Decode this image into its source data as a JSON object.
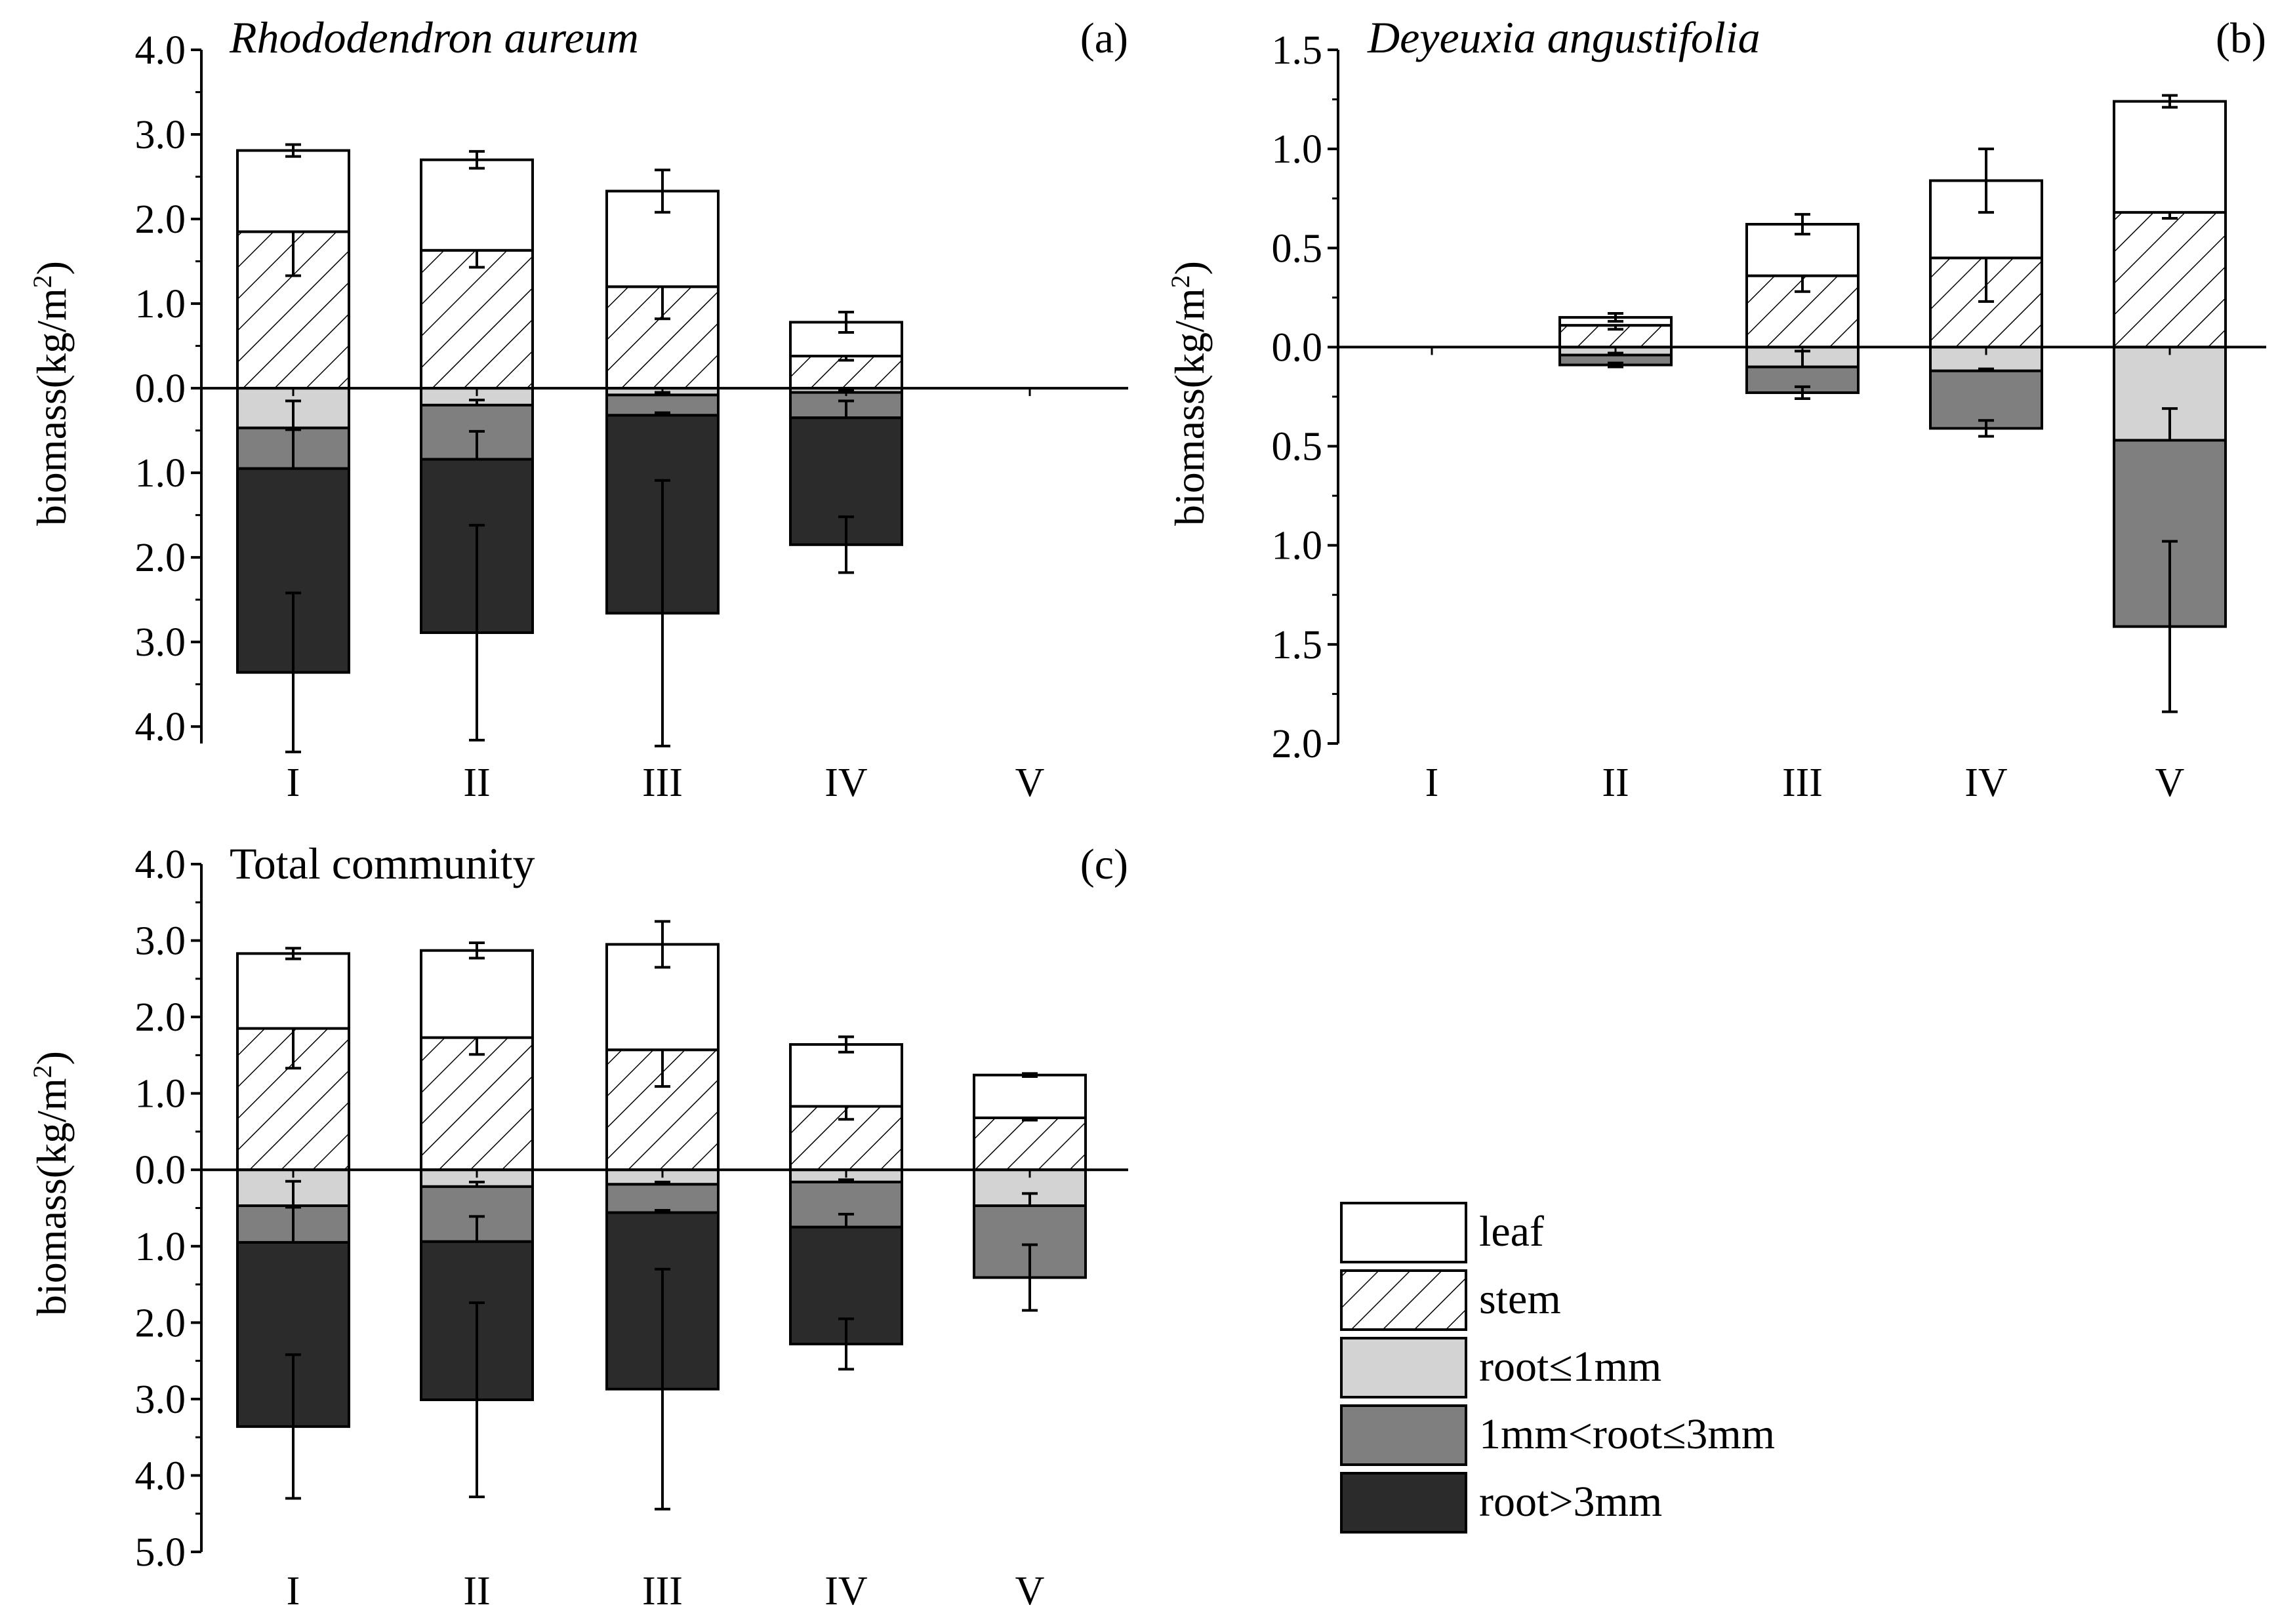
{
  "figure": {
    "legend": [
      {
        "key": "leaf",
        "label": "leaf"
      },
      {
        "key": "stem",
        "label": "stem"
      },
      {
        "key": "root1",
        "label": "root≤1mm"
      },
      {
        "key": "root3",
        "label": "1mm<root≤3mm"
      },
      {
        "key": "rootL",
        "label": "root>3mm"
      }
    ],
    "colors": {
      "leaf": "#ffffff",
      "stem": "#ffffff",
      "root1": "#d3d3d3",
      "root3": "#7f7f7f",
      "rootL": "#2b2b2b",
      "line": "#000000"
    }
  },
  "chart_data": [
    {
      "id": "a",
      "type": "bar",
      "stacked": "diverging",
      "title": "Rhododendron aureum",
      "title_style": "italic",
      "panel_label": "(a)",
      "ylabel": "biomass(kg/m²)",
      "ylim": [
        -4.2,
        4.0
      ],
      "categories": [
        "I",
        "II",
        "III",
        "IV",
        "V"
      ],
      "yticks": [
        {
          "v": 4,
          "label": "4.0"
        },
        {
          "v": 3,
          "label": "3.0"
        },
        {
          "v": 2,
          "label": "2.0"
        },
        {
          "v": 1,
          "label": "1.0"
        },
        {
          "v": 0,
          "label": "0.0"
        },
        {
          "v": -1,
          "label": "1.0"
        },
        {
          "v": -2,
          "label": "2.0"
        },
        {
          "v": -3,
          "label": "3.0"
        },
        {
          "v": -4,
          "label": "4.0"
        }
      ],
      "above": [
        {
          "name": "stem",
          "values": [
            1.85,
            1.63,
            1.2,
            0.38,
            0
          ],
          "err": [
            0.52,
            0.2,
            0.38,
            0.05,
            0
          ]
        },
        {
          "name": "leaf",
          "values": [
            0.96,
            1.07,
            1.13,
            0.4,
            0
          ],
          "err": [
            0.07,
            0.1,
            0.25,
            0.12,
            0
          ]
        }
      ],
      "below": [
        {
          "name": "root≤1mm",
          "values": [
            0.47,
            0.2,
            0.08,
            0.05,
            0
          ],
          "err": [
            0.32,
            0.06,
            0.03,
            0.02,
            0
          ]
        },
        {
          "name": "1mm<root≤3mm",
          "values": [
            0.48,
            0.64,
            0.24,
            0.3,
            0
          ],
          "err": [
            0.46,
            0.33,
            0.03,
            0.2,
            0
          ]
        },
        {
          "name": "root>3mm",
          "values": [
            2.41,
            2.05,
            2.34,
            1.5,
            0
          ],
          "err": [
            0.94,
            1.27,
            1.57,
            0.33,
            0
          ]
        }
      ]
    },
    {
      "id": "b",
      "type": "bar",
      "stacked": "diverging",
      "title": "Deyeuxia angustifolia",
      "title_style": "italic",
      "panel_label": "(b)",
      "ylabel": "biomass(kg/m²)",
      "ylim": [
        -2.0,
        1.5
      ],
      "categories": [
        "I",
        "II",
        "III",
        "IV",
        "V"
      ],
      "yticks": [
        {
          "v": 1.5,
          "label": "1.5"
        },
        {
          "v": 1,
          "label": "1.0"
        },
        {
          "v": 0.5,
          "label": "0.5"
        },
        {
          "v": 0,
          "label": "0.0"
        },
        {
          "v": -0.5,
          "label": "0.5"
        },
        {
          "v": -1,
          "label": "1.0"
        },
        {
          "v": -1.5,
          "label": "1.5"
        },
        {
          "v": -2,
          "label": "2.0"
        }
      ],
      "above": [
        {
          "name": "stem",
          "values": [
            0,
            0.11,
            0.36,
            0.45,
            0.68
          ],
          "err": [
            0,
            0.02,
            0.08,
            0.22,
            0.03
          ]
        },
        {
          "name": "leaf",
          "values": [
            0,
            0.04,
            0.26,
            0.39,
            0.56
          ],
          "err": [
            0,
            0.02,
            0.05,
            0.16,
            0.03
          ]
        }
      ],
      "below": [
        {
          "name": "root≤1mm",
          "values": [
            0,
            0.04,
            0.1,
            0.12,
            0.47
          ],
          "err": [
            0,
            0.01,
            0.08,
            0.01,
            0.16
          ]
        },
        {
          "name": "1mm<root≤3mm",
          "values": [
            0,
            0.05,
            0.13,
            0.29,
            0.94
          ],
          "err": [
            0,
            0.01,
            0.03,
            0.04,
            0.43
          ]
        }
      ]
    },
    {
      "id": "c",
      "type": "bar",
      "stacked": "diverging",
      "title": "Total community",
      "title_style": "normal",
      "panel_label": "(c)",
      "ylabel": "biomass(kg/m²)",
      "ylim": [
        -5.0,
        4.0
      ],
      "categories": [
        "I",
        "II",
        "III",
        "IV",
        "V"
      ],
      "yticks": [
        {
          "v": 4,
          "label": "4.0"
        },
        {
          "v": 3,
          "label": "3.0"
        },
        {
          "v": 2,
          "label": "2.0"
        },
        {
          "v": 1,
          "label": "1.0"
        },
        {
          "v": 0,
          "label": "0.0"
        },
        {
          "v": -1,
          "label": "1.0"
        },
        {
          "v": -2,
          "label": "2.0"
        },
        {
          "v": -3,
          "label": "3.0"
        },
        {
          "v": -4,
          "label": "4.0"
        },
        {
          "v": -5,
          "label": "5.0"
        }
      ],
      "above": [
        {
          "name": "stem",
          "values": [
            1.85,
            1.73,
            1.57,
            0.83,
            0.68
          ],
          "err": [
            0.52,
            0.22,
            0.48,
            0.17,
            0.03
          ]
        },
        {
          "name": "leaf",
          "values": [
            0.98,
            1.14,
            1.38,
            0.81,
            0.56
          ],
          "err": [
            0.07,
            0.1,
            0.3,
            0.1,
            0.02
          ]
        }
      ],
      "below": [
        {
          "name": "root≤1mm",
          "values": [
            0.47,
            0.22,
            0.19,
            0.16,
            0.47
          ],
          "err": [
            0.32,
            0.06,
            0.03,
            0.03,
            0.16
          ]
        },
        {
          "name": "1mm<root≤3mm",
          "values": [
            0.48,
            0.72,
            0.37,
            0.59,
            0.94
          ],
          "err": [
            0.46,
            0.33,
            0.03,
            0.17,
            0.43
          ]
        },
        {
          "name": "root>3mm",
          "values": [
            2.41,
            2.07,
            2.31,
            1.53,
            0
          ],
          "err": [
            0.94,
            1.27,
            1.57,
            0.33,
            0
          ]
        }
      ]
    }
  ]
}
